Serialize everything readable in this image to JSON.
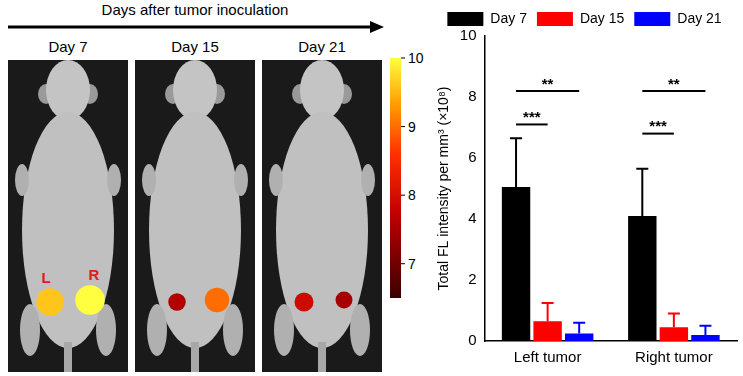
{
  "panel": {
    "title": "Days after tumor inoculation",
    "images": [
      {
        "label": "Day 7",
        "tumors": [
          {
            "label": "L",
            "intensity": 9.6
          },
          {
            "label": "R",
            "intensity": 10
          }
        ]
      },
      {
        "label": "Day 15",
        "tumors": [
          {
            "intensity": 7.6
          },
          {
            "intensity": 9.0
          }
        ]
      },
      {
        "label": "Day 21",
        "tumors": [
          {
            "intensity": 7.9
          },
          {
            "intensity": 7.5
          }
        ]
      }
    ],
    "colorbar": {
      "range": [
        6.5,
        10
      ],
      "ticks": [
        7,
        8,
        9,
        10
      ]
    }
  },
  "chart_data": {
    "type": "bar",
    "categories": [
      "Left tumor",
      "Right tumor"
    ],
    "y_label": "Total FL intensity per mm³ (×10⁸)",
    "ylim": [
      0,
      10
    ],
    "yticks": [
      0,
      2,
      4,
      6,
      8,
      10
    ],
    "grid": false,
    "legend": "top",
    "series": [
      {
        "name": "Day 7",
        "color": "#000000",
        "values": [
          5.05,
          4.1
        ],
        "errors": [
          1.6,
          1.55
        ]
      },
      {
        "name": "Day 15",
        "color": "#ff0000",
        "values": [
          0.65,
          0.45
        ],
        "errors": [
          0.6,
          0.45
        ]
      },
      {
        "name": "Day 21",
        "color": "#0000ff",
        "values": [
          0.25,
          0.2
        ],
        "errors": [
          0.35,
          0.3
        ]
      }
    ],
    "significance": [
      {
        "category": "Left tumor",
        "from": "Day 7",
        "to": "Day 15",
        "label": "***",
        "y": 7.1
      },
      {
        "category": "Left tumor",
        "from": "Day 7",
        "to": "Day 21",
        "label": "**",
        "y": 8.2
      },
      {
        "category": "Right tumor",
        "from": "Day 7",
        "to": "Day 15",
        "label": "***",
        "y": 6.8
      },
      {
        "category": "Right tumor",
        "from": "Day 7",
        "to": "Day 21",
        "label": "**",
        "y": 8.2
      }
    ]
  }
}
